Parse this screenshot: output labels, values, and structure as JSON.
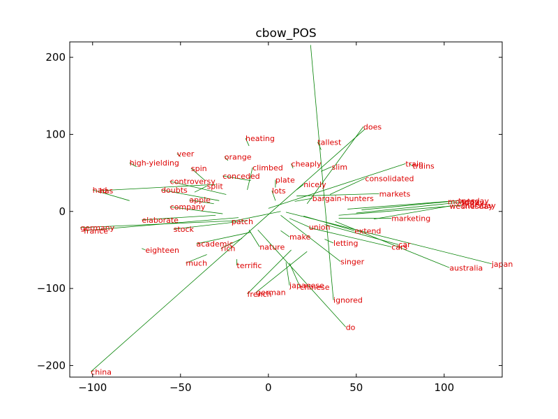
{
  "chart_data": {
    "type": "scatter",
    "title": "cbow_POS",
    "xlabel": "",
    "ylabel": "",
    "xlim": [
      -113,
      133
    ],
    "ylim": [
      -215,
      220
    ],
    "xticks": [
      -100,
      -50,
      0,
      50,
      100
    ],
    "yticks": [
      -200,
      -100,
      0,
      100,
      200
    ],
    "xtick_labels": [
      "−100",
      "−50",
      "0",
      "50",
      "100"
    ],
    "ytick_labels": [
      "−200",
      "−100",
      "0",
      "100",
      "200"
    ],
    "grid": false,
    "colors": {
      "label": "#dd0000",
      "arrow": "#008000",
      "axis": "#000000"
    },
    "points": [
      {
        "word": "does",
        "x": 54,
        "y": 110,
        "ax": 22,
        "ay": 10
      },
      {
        "word": "tallest",
        "x": 28,
        "y": 90,
        "ax": 30,
        "ay": 80
      },
      {
        "word": "heating",
        "x": -13,
        "y": 95,
        "ax": -11,
        "ay": 85
      },
      {
        "word": "veer",
        "x": -52,
        "y": 75,
        "ax": -50,
        "ay": 71
      },
      {
        "word": "orange",
        "x": -25,
        "y": 71,
        "ax": -23,
        "ay": 66
      },
      {
        "word": "high-yielding",
        "x": -79,
        "y": 63,
        "ax": -75,
        "ay": 58
      },
      {
        "word": "cheaply",
        "x": 13,
        "y": 62,
        "ax": 14,
        "ay": 56
      },
      {
        "word": "train",
        "x": 78,
        "y": 62,
        "ax": 0,
        "ay": 4
      },
      {
        "word": "trains",
        "x": 82,
        "y": 59,
        "ax": 80,
        "ay": 62
      },
      {
        "word": "climbed",
        "x": -9,
        "y": 57,
        "ax": -12,
        "ay": 28
      },
      {
        "word": "slim",
        "x": 36,
        "y": 58,
        "ax": 30,
        "ay": 52
      },
      {
        "word": "spin",
        "x": -44,
        "y": 56,
        "ax": -36,
        "ay": 40
      },
      {
        "word": "conceded",
        "x": -26,
        "y": 46,
        "ax": -10,
        "ay": 40
      },
      {
        "word": "consolidated",
        "x": 55,
        "y": 43,
        "ax": 35,
        "ay": 22
      },
      {
        "word": "plate",
        "x": 4,
        "y": 41,
        "ax": 4,
        "ay": 31
      },
      {
        "word": "controversy",
        "x": -56,
        "y": 39,
        "ax": -24,
        "ay": 22
      },
      {
        "word": "nicely",
        "x": 20,
        "y": 35,
        "ax": 16,
        "ay": 28
      },
      {
        "word": "split",
        "x": -35,
        "y": 33,
        "ax": -42,
        "ay": 25
      },
      {
        "word": "doubts",
        "x": -61,
        "y": 28,
        "ax": -28,
        "ay": 14
      },
      {
        "word": "lots",
        "x": 2,
        "y": 27,
        "ax": 4,
        "ay": 14
      },
      {
        "word": "markets",
        "x": 63,
        "y": 23,
        "ax": 16,
        "ay": 20
      },
      {
        "word": "has",
        "x": -96,
        "y": 27,
        "ax": -30,
        "ay": 35
      },
      {
        "word": "had",
        "x": -100,
        "y": 28,
        "ax": -79,
        "ay": 14
      },
      {
        "word": "bargain-hunters",
        "x": 25,
        "y": 17,
        "ax": 15,
        "ay": 13
      },
      {
        "word": "apple",
        "x": -45,
        "y": 15,
        "ax": -31,
        "ay": 10
      },
      {
        "word": "monday",
        "x": 102,
        "y": 13,
        "ax": 45,
        "ay": 3
      },
      {
        "word": "tuesday",
        "x": 108,
        "y": 14,
        "ax": 53,
        "ay": 2
      },
      {
        "word": "friday",
        "x": 110,
        "y": 12,
        "ax": 50,
        "ay": -2
      },
      {
        "word": "thursday",
        "x": 110,
        "y": 8,
        "ax": 40,
        "ay": -5
      },
      {
        "word": "wednesday",
        "x": 103,
        "y": 7,
        "ax": 60,
        "ay": -10
      },
      {
        "word": "company",
        "x": -56,
        "y": 6,
        "ax": -26,
        "ay": -3
      },
      {
        "word": "elaborate",
        "x": -72,
        "y": -11,
        "ax": -30,
        "ay": -5
      },
      {
        "word": "marketing",
        "x": 70,
        "y": -9,
        "ax": 40,
        "ay": -9
      },
      {
        "word": "patch",
        "x": -21,
        "y": -13,
        "ax": 7,
        "ay": 0
      },
      {
        "word": "germany",
        "x": -107,
        "y": -21,
        "ax": -18,
        "ay": -12
      },
      {
        "word": "france",
        "x": -105,
        "y": -25,
        "ax": -17,
        "ay": -8
      },
      {
        "word": "stock",
        "x": -54,
        "y": -23,
        "ax": -12,
        "ay": -12
      },
      {
        "word": "union",
        "x": 23,
        "y": -20,
        "ax": 12,
        "ay": -9
      },
      {
        "word": "extend",
        "x": 49,
        "y": -25,
        "ax": 20,
        "ay": -6
      },
      {
        "word": "make",
        "x": 12,
        "y": -33,
        "ax": 7,
        "ay": -25
      },
      {
        "word": "academic",
        "x": -41,
        "y": -42,
        "ax": -10,
        "ay": -27
      },
      {
        "word": "car",
        "x": 74,
        "y": -43,
        "ax": 32,
        "ay": -17
      },
      {
        "word": "cars",
        "x": 70,
        "y": -46,
        "ax": 23,
        "ay": -21
      },
      {
        "word": "letting",
        "x": 37,
        "y": -41,
        "ax": 32,
        "ay": -36
      },
      {
        "word": "nature",
        "x": -5,
        "y": -46,
        "ax": -11,
        "ay": -24
      },
      {
        "word": "rich",
        "x": -27,
        "y": -48,
        "ax": -15,
        "ay": -35
      },
      {
        "word": "eighteen",
        "x": -70,
        "y": -50,
        "ax": -72,
        "ay": -48
      },
      {
        "word": "singer",
        "x": 41,
        "y": -65,
        "ax": 7,
        "ay": -5
      },
      {
        "word": "much",
        "x": -47,
        "y": -67,
        "ax": -35,
        "ay": -56
      },
      {
        "word": "terrific",
        "x": -18,
        "y": -70,
        "ax": -18,
        "ay": -62
      },
      {
        "word": "japan",
        "x": 127,
        "y": -68,
        "ax": 10,
        "ay": -1
      },
      {
        "word": "australia",
        "x": 103,
        "y": -73,
        "ax": 38,
        "ay": -13
      },
      {
        "word": "japanese",
        "x": 12,
        "y": -96,
        "ax": 10,
        "ay": -66
      },
      {
        "word": "chinese",
        "x": 18,
        "y": -98,
        "ax": 12,
        "ay": -67
      },
      {
        "word": "german",
        "x": -7,
        "y": -105,
        "ax": 22,
        "ay": -52
      },
      {
        "word": "french",
        "x": -12,
        "y": -107,
        "ax": 13,
        "ay": -50
      },
      {
        "word": "ignored",
        "x": 37,
        "y": -115,
        "ax": 24,
        "ay": 216
      },
      {
        "word": "do",
        "x": 44,
        "y": -150,
        "ax": -6,
        "ay": -24
      },
      {
        "word": "china",
        "x": -101,
        "y": -208,
        "ax": 55,
        "ay": 107
      }
    ]
  }
}
